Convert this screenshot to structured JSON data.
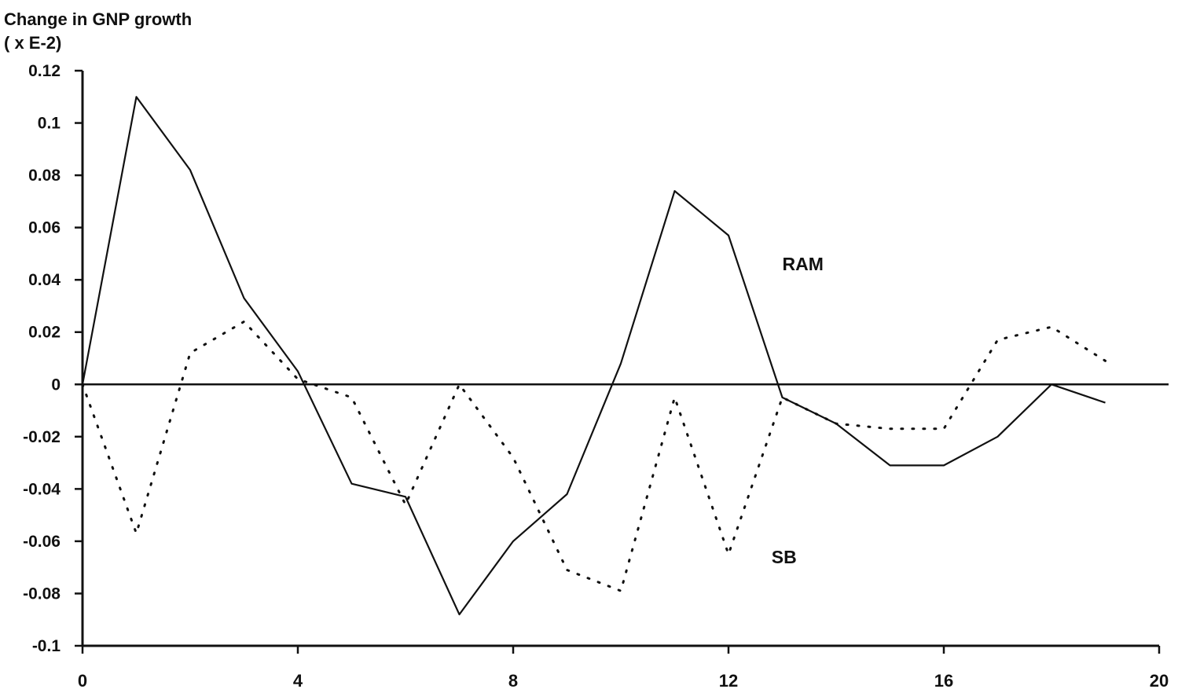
{
  "chart_data": {
    "type": "line",
    "title": "",
    "ylabel_line1": "Change in GNP growth",
    "ylabel_line2": "( x E-2)",
    "xlabel": "",
    "xlim": [
      0,
      20
    ],
    "ylim": [
      -0.1,
      0.12
    ],
    "x_ticks": [
      0,
      4,
      8,
      12,
      16,
      20
    ],
    "x_tick_labels": [
      "0",
      "4",
      "8",
      "12",
      "16",
      "20"
    ],
    "y_ticks": [
      0.12,
      0.1,
      0.08,
      0.06,
      0.04,
      0.02,
      0,
      -0.02,
      -0.04,
      -0.06,
      -0.08,
      -0.1
    ],
    "y_tick_labels": [
      "0.12",
      "0.1",
      "0.08",
      "0.06",
      "0.04",
      "0.02",
      "0",
      "-0.02",
      "-0.04",
      "-0.06",
      "-0.08",
      "-0.1"
    ],
    "grid": false,
    "zero_line": true,
    "series": [
      {
        "name": "RAM",
        "style": "solid",
        "color": "#111111",
        "x": [
          0,
          1,
          2,
          3,
          4,
          5,
          6,
          7,
          8,
          9,
          10,
          11,
          12,
          13,
          14,
          15,
          16,
          17,
          18,
          19
        ],
        "values": [
          0.0,
          0.11,
          0.082,
          0.033,
          0.005,
          -0.038,
          -0.043,
          -0.088,
          -0.06,
          -0.042,
          0.008,
          0.074,
          0.057,
          -0.005,
          -0.015,
          -0.031,
          -0.031,
          -0.02,
          0.0,
          -0.007
        ]
      },
      {
        "name": "SB",
        "style": "dotted",
        "color": "#111111",
        "x": [
          0,
          1,
          2,
          3,
          4,
          5,
          6,
          7,
          8,
          9,
          10,
          11,
          12,
          13,
          14,
          15,
          16,
          17,
          18,
          19
        ],
        "values": [
          0.0,
          -0.057,
          0.012,
          0.024,
          0.002,
          -0.005,
          -0.046,
          0.0,
          -0.028,
          -0.071,
          -0.079,
          -0.005,
          -0.065,
          -0.005,
          -0.015,
          -0.017,
          -0.017,
          0.017,
          0.022,
          0.009
        ]
      }
    ],
    "annotations": [
      {
        "text": "RAM",
        "x": 13.0,
        "y": 0.046
      },
      {
        "text": "SB",
        "x": 12.8,
        "y": -0.066
      }
    ]
  }
}
